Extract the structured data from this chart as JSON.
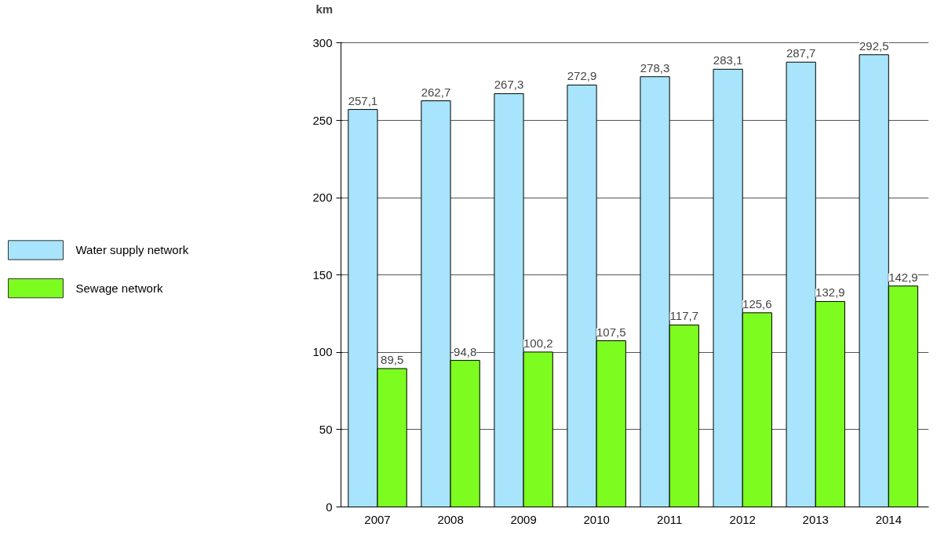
{
  "chart_data": {
    "type": "bar",
    "ylabel": "km",
    "categories": [
      "2007",
      "2008",
      "2009",
      "2010",
      "2011",
      "2012",
      "2013",
      "2014"
    ],
    "series": [
      {
        "name": "Water supply network",
        "color": "#a8e4fb",
        "values": [
          257.1,
          262.7,
          267.3,
          272.9,
          278.3,
          283.1,
          287.7,
          292.5
        ],
        "value_labels": [
          "257,1",
          "262,7",
          "267,3",
          "272,9",
          "278,3",
          "283,1",
          "287,7",
          "292,5"
        ]
      },
      {
        "name": "Sewage network",
        "color": "#7dfc1f",
        "values": [
          89.5,
          94.8,
          100.2,
          107.5,
          117.7,
          125.6,
          132.9,
          142.9
        ],
        "value_labels": [
          "89,5",
          "94,8",
          "100,2",
          "107,5",
          "117,7",
          "125,6",
          "132,9",
          "142,9"
        ]
      }
    ],
    "ylim": [
      0,
      300
    ],
    "yticks": [
      0,
      50,
      100,
      150,
      200,
      250,
      300
    ],
    "grid": "y",
    "legend": "left"
  }
}
